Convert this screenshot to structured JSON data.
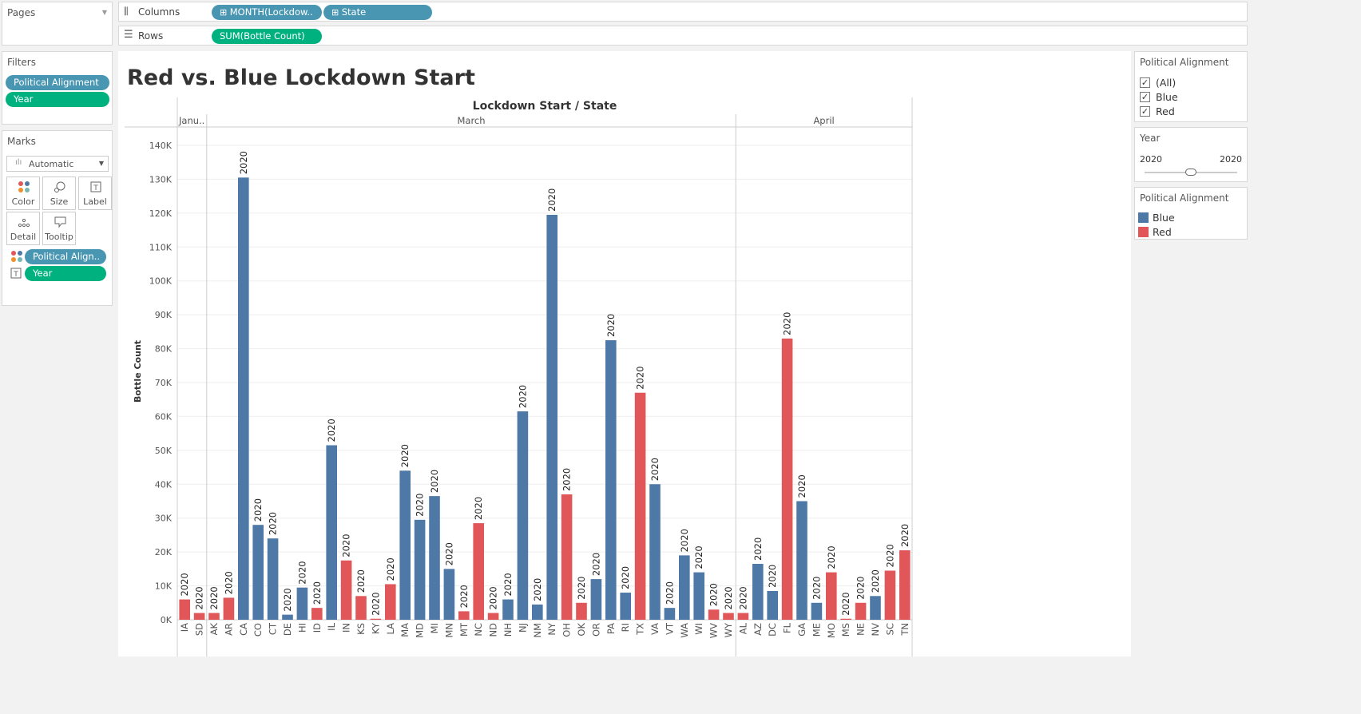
{
  "pages": {
    "title": "Pages"
  },
  "columns_shelf": {
    "label": "Columns",
    "pills": [
      "MONTH(Lockdow..",
      "State"
    ]
  },
  "rows_shelf": {
    "label": "Rows",
    "pills": [
      "SUM(Bottle Count)"
    ]
  },
  "filters": {
    "title": "Filters",
    "pills": [
      "Political Alignment",
      "Year"
    ]
  },
  "marks": {
    "title": "Marks",
    "type_select": "Automatic",
    "buttons": [
      "Color",
      "Size",
      "Label",
      "Detail",
      "Tooltip"
    ],
    "fields": [
      "Political Align..",
      "Year"
    ]
  },
  "filter_card": {
    "title": "Political Alignment",
    "options": [
      {
        "label": "(All)",
        "checked": true
      },
      {
        "label": "Blue",
        "checked": true
      },
      {
        "label": "Red",
        "checked": true
      }
    ]
  },
  "year_card": {
    "title": "Year",
    "min": "2020",
    "max": "2020"
  },
  "legend_card": {
    "title": "Political Alignment",
    "items": [
      {
        "label": "Blue",
        "color": "#4e79a7"
      },
      {
        "label": "Red",
        "color": "#e15759"
      }
    ]
  },
  "colors": {
    "Blue": "#4e79a7",
    "Red": "#e15759",
    "pill_blue": "#4996b2",
    "pill_green": "#00b180"
  },
  "chart_data": {
    "type": "bar",
    "title": "Red vs. Blue Lockdown Start",
    "header": "Lockdown Start / State",
    "ylabel": "Bottle Count",
    "ylim": [
      0,
      140000
    ],
    "yticks": [
      0,
      10000,
      20000,
      30000,
      40000,
      50000,
      60000,
      70000,
      80000,
      90000,
      100000,
      110000,
      120000,
      130000,
      140000
    ],
    "ytick_labels": [
      "0K",
      "10K",
      "20K",
      "30K",
      "40K",
      "50K",
      "60K",
      "70K",
      "80K",
      "90K",
      "100K",
      "110K",
      "120K",
      "130K",
      "140K"
    ],
    "bar_label": "2020",
    "months": [
      {
        "label": "Janu..",
        "count": 2
      },
      {
        "label": "March",
        "count": 36
      },
      {
        "label": "April",
        "count": 12
      }
    ],
    "categories": [
      "IA",
      "SD",
      "AK",
      "AR",
      "CA",
      "CO",
      "CT",
      "DE",
      "HI",
      "ID",
      "IL",
      "IN",
      "KS",
      "KY",
      "LA",
      "MA",
      "MD",
      "MI",
      "MN",
      "MT",
      "NC",
      "ND",
      "NH",
      "NJ",
      "NM",
      "NY",
      "OH",
      "OK",
      "OR",
      "PA",
      "RI",
      "TX",
      "VA",
      "VT",
      "WA",
      "WI",
      "WV",
      "WY",
      "AL",
      "AZ",
      "DC",
      "FL",
      "GA",
      "ME",
      "MO",
      "MS",
      "NE",
      "NV",
      "SC",
      "TN"
    ],
    "alignment": [
      "Red",
      "Red",
      "Red",
      "Red",
      "Blue",
      "Blue",
      "Blue",
      "Blue",
      "Blue",
      "Red",
      "Blue",
      "Red",
      "Red",
      "Red",
      "Red",
      "Blue",
      "Blue",
      "Blue",
      "Blue",
      "Red",
      "Red",
      "Red",
      "Blue",
      "Blue",
      "Blue",
      "Blue",
      "Red",
      "Red",
      "Blue",
      "Blue",
      "Blue",
      "Red",
      "Blue",
      "Blue",
      "Blue",
      "Blue",
      "Red",
      "Red",
      "Red",
      "Blue",
      "Blue",
      "Red",
      "Blue",
      "Blue",
      "Red",
      "Red",
      "Red",
      "Blue",
      "Red",
      "Red"
    ],
    "values": [
      6000,
      2000,
      2000,
      6500,
      130500,
      28000,
      24000,
      1500,
      9500,
      3500,
      51500,
      17500,
      7000,
      300,
      10500,
      44000,
      29500,
      36500,
      15000,
      2500,
      28500,
      2000,
      6000,
      61500,
      4500,
      119500,
      37000,
      5000,
      12000,
      82500,
      8000,
      67000,
      40000,
      3500,
      19000,
      14000,
      3000,
      2000,
      2000,
      16500,
      8500,
      83000,
      35000,
      5000,
      14000,
      300,
      5000,
      7000,
      14500,
      20500
    ]
  }
}
